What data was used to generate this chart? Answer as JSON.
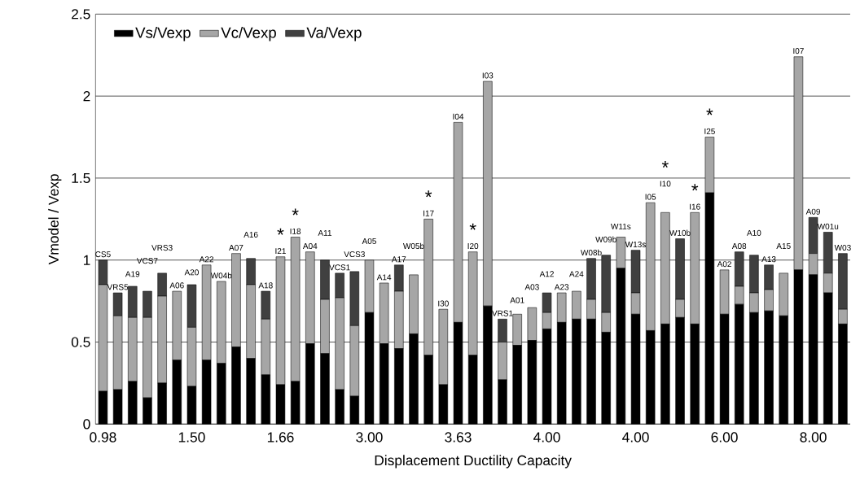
{
  "chart_data": {
    "type": "bar",
    "stacked": true,
    "xlabel": "Displacement Ductility Capacity",
    "ylabel": "Vmodel / Vexp",
    "categories": [
      "CS5",
      "VRS5",
      "A19",
      "VCS7",
      "VRS3",
      "A06",
      "A20",
      "A22",
      "W04b",
      "A07",
      "A16",
      "A18",
      "I21",
      "I18",
      "A04",
      "A11",
      "VCS1",
      "VCS3",
      "A05",
      "A14",
      "A17",
      "W05b",
      "I17",
      "I30",
      "I04",
      "I20",
      "I03",
      "VRS1",
      "A01",
      "A03",
      "A12",
      "A23",
      "A24",
      "W08b",
      "W09b",
      "W11s",
      "W13s",
      "I05",
      "I10",
      "W10b",
      "I16",
      "I25",
      "A02",
      "A08",
      "A10",
      "A13",
      "A15",
      "I07",
      "A09",
      "W01u",
      "W03"
    ],
    "series": [
      {
        "name": "Vs/Vexp",
        "color": "#000000",
        "values": [
          0.2,
          0.21,
          0.26,
          0.16,
          0.25,
          0.39,
          0.23,
          0.39,
          0.37,
          0.47,
          0.4,
          0.3,
          0.24,
          0.26,
          0.49,
          0.43,
          0.21,
          0.17,
          0.68,
          0.49,
          0.46,
          0.55,
          0.42,
          0.24,
          0.62,
          0.42,
          0.72,
          0.27,
          0.48,
          0.51,
          0.58,
          0.62,
          0.64,
          0.64,
          0.56,
          0.95,
          0.67,
          0.57,
          0.61,
          0.65,
          0.61,
          1.41,
          0.67,
          0.73,
          0.68,
          0.69,
          0.66,
          0.94,
          0.91,
          0.8,
          0.61
        ]
      },
      {
        "name": "Vc/Vexp",
        "color": "#a6a6a6",
        "values": [
          0.65,
          0.45,
          0.39,
          0.49,
          0.53,
          0.42,
          0.36,
          0.58,
          0.5,
          0.57,
          0.45,
          0.34,
          0.78,
          0.88,
          0.56,
          0.33,
          0.56,
          0.43,
          0.32,
          0.37,
          0.35,
          0.36,
          0.83,
          0.46,
          1.22,
          0.63,
          1.37,
          0.23,
          0.19,
          0.2,
          0.1,
          0.18,
          0.17,
          0.12,
          0.12,
          0.19,
          0.13,
          0.78,
          0.68,
          0.11,
          0.68,
          0.34,
          0.27,
          0.11,
          0.12,
          0.13,
          0.26,
          1.3,
          0.13,
          0.12,
          0.09
        ]
      },
      {
        "name": "Va/Vexp",
        "color": "#404040",
        "values": [
          0.15,
          0.14,
          0.19,
          0.16,
          0.14,
          0,
          0.26,
          0,
          0,
          0,
          0.16,
          0.17,
          0,
          0,
          0,
          0.24,
          0.15,
          0.33,
          0,
          0,
          0.16,
          0,
          0,
          0,
          0,
          0,
          0,
          0.14,
          0,
          0,
          0.12,
          0,
          0,
          0.25,
          0.35,
          0,
          0.26,
          0,
          0,
          0.37,
          0,
          0,
          0,
          0.21,
          0.23,
          0.15,
          0,
          0,
          0.22,
          0.25,
          0.34
        ]
      }
    ],
    "ylim": [
      0,
      2.5
    ],
    "yticks": [
      0,
      0.5,
      1,
      1.5,
      2,
      2.5
    ],
    "grid": "y",
    "legend": "top left",
    "annotations": [
      {
        "text": "*",
        "x": "I21",
        "y": 1.02
      },
      {
        "text": "*",
        "x": "I18",
        "y": 1.14
      },
      {
        "text": "*",
        "x": "I17",
        "y": 1.25
      },
      {
        "text": "*",
        "x": "I20",
        "y": 1.05
      },
      {
        "text": "*",
        "x": "I10",
        "y": 1.29
      },
      {
        "text": "*",
        "x": "I16",
        "y": 1.29
      },
      {
        "text": "*",
        "x": "I25",
        "y": 1.75
      },
      {
        "text": "0.98",
        "x": "CS5",
        "y": 0
      },
      {
        "text": "1.50",
        "x": "A20",
        "y": 0
      },
      {
        "text": "1.66",
        "x": "I21",
        "y": 0
      },
      {
        "text": "3.00",
        "x": "A05",
        "y": 0
      },
      {
        "text": "3.63",
        "x": "I04",
        "y": 0
      },
      {
        "text": "4.00",
        "x": "A12",
        "y": 0
      },
      {
        "text": "4.00",
        "x": "W13s",
        "y": 0
      },
      {
        "text": "6.00",
        "x": "A02",
        "y": 0
      },
      {
        "text": "8.00",
        "x": "A09",
        "y": 0
      }
    ]
  }
}
